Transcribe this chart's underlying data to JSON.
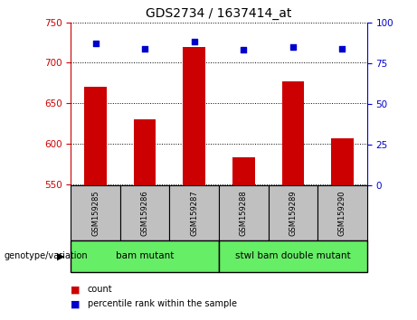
{
  "title": "GDS2734 / 1637414_at",
  "samples": [
    "GSM159285",
    "GSM159286",
    "GSM159287",
    "GSM159288",
    "GSM159289",
    "GSM159290"
  ],
  "counts": [
    670,
    630,
    720,
    583,
    677,
    607
  ],
  "percentile_ranks": [
    87,
    84,
    88,
    83,
    85,
    84
  ],
  "ylim_left": [
    548,
    750
  ],
  "ylim_right": [
    0,
    100
  ],
  "yticks_left": [
    550,
    600,
    650,
    700,
    750
  ],
  "yticks_right": [
    0,
    25,
    50,
    75,
    100
  ],
  "groups": [
    {
      "label": "bam mutant",
      "start": 0,
      "end": 2,
      "color": "#66EE66"
    },
    {
      "label": "stwl bam double mutant",
      "start": 3,
      "end": 5,
      "color": "#66EE66"
    }
  ],
  "bar_color": "#CC0000",
  "dot_color": "#0000CC",
  "bar_bottom": 548,
  "axis_color_left": "#CC0000",
  "axis_color_right": "#0000CC",
  "xlabel_area_color": "#C0C0C0",
  "background_color": "#ffffff",
  "genotype_label": "genotype/variation",
  "legend_count_label": "count",
  "legend_pct_label": "percentile rank within the sample"
}
